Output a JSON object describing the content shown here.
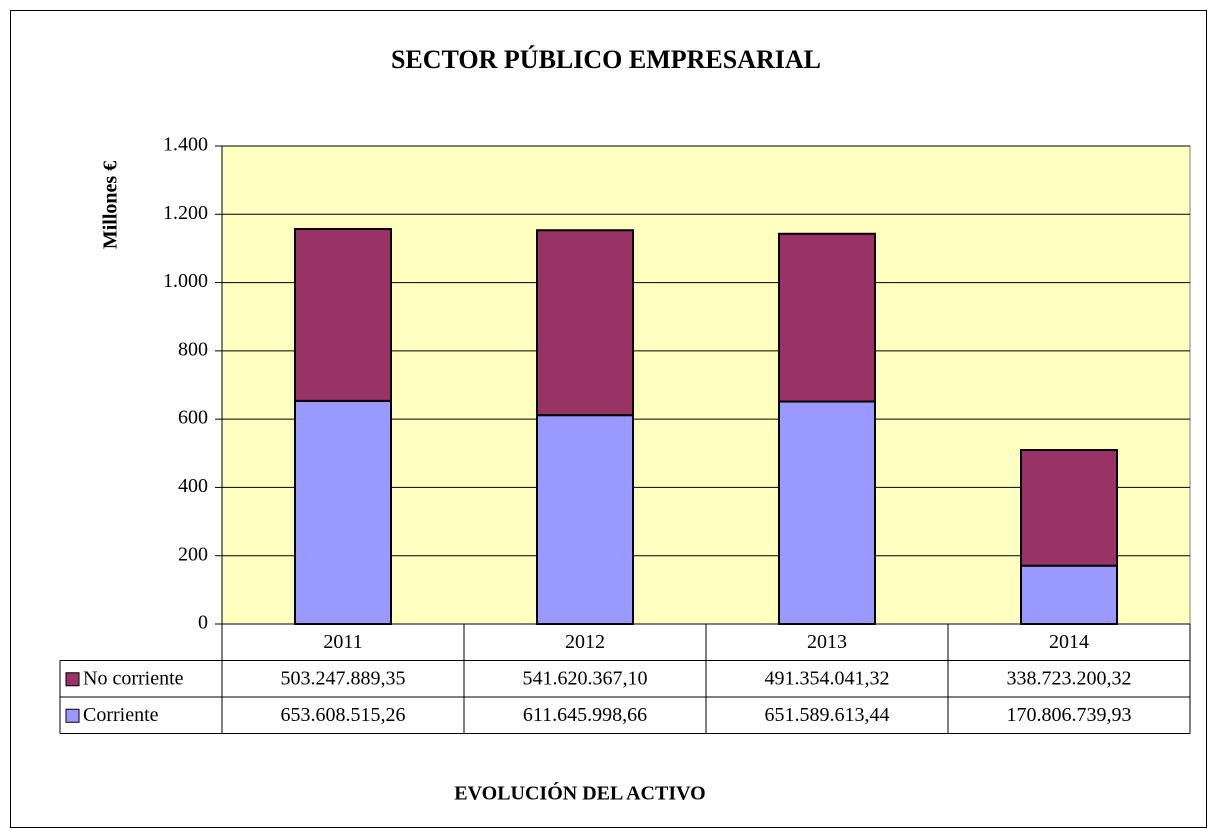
{
  "chart_data": {
    "type": "stacked_bar",
    "title": "SECTOR PÚBLICO EMPRESARIAL",
    "y_label": "Millones €",
    "caption": "EVOLUCIÓN DEL ACTIVO",
    "categories": [
      "2011",
      "2012",
      "2013",
      "2014"
    ],
    "series": [
      {
        "name": "Corriente",
        "color": "#9999ff",
        "values": [
          653.60851526,
          611.64599866,
          651.58961344,
          170.80673993
        ],
        "value_labels": [
          "653.608.515,26",
          "611.645.998,66",
          "651.589.613,44",
          "170.806.739,93"
        ]
      },
      {
        "name": "No corriente",
        "color": "#993366",
        "values": [
          503.24788935,
          541.6203671,
          491.35404132,
          338.72320032
        ],
        "value_labels": [
          "503.247.889,35",
          "541.620.367,10",
          "491.354.041,32",
          "338.723.200,32"
        ]
      }
    ],
    "ylim": [
      0,
      1400
    ],
    "yticks": [
      0,
      200,
      400,
      600,
      800,
      {
        "value": 1000,
        "label": "1.000"
      },
      {
        "value": 1200,
        "label": "1.200"
      },
      {
        "value": 1400,
        "label": "1.400"
      }
    ],
    "grid": true,
    "plot_background": "#ffffc0"
  }
}
